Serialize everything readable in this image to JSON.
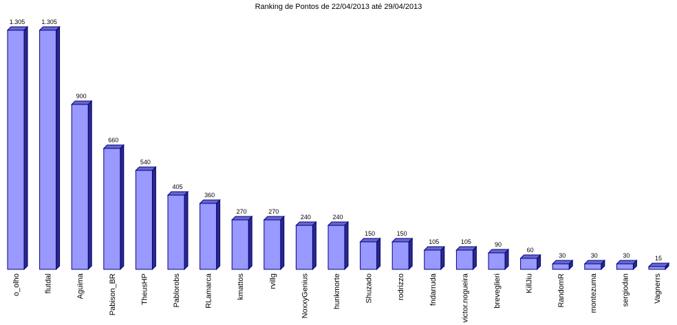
{
  "chart_data": {
    "type": "bar3d",
    "title": "Ranking de Pontos de 22/04/2013 até 29/04/2013",
    "categories": [
      "o_olho",
      "flutdal",
      "Aguima",
      "Pabison_BR",
      "TheusHP",
      "Pablorobs",
      "RLamarca",
      "kmattos",
      "rvillg",
      "NoxxyGenius",
      "hunkmorte",
      "Shuzado",
      "rodrizzo",
      "fndarruda",
      "victor.nogueira",
      "breveglieri",
      "KillJiu",
      "RandomR",
      "montezuma",
      "sergiodan",
      "Vagnerrs"
    ],
    "values": [
      1305,
      1305,
      900,
      660,
      540,
      405,
      360,
      270,
      270,
      240,
      240,
      150,
      150,
      105,
      105,
      90,
      60,
      30,
      30,
      30,
      15
    ],
    "value_labels": [
      "1.305",
      "1.305",
      "900",
      "660",
      "540",
      "405",
      "360",
      "270",
      "270",
      "240",
      "240",
      "150",
      "150",
      "105",
      "105",
      "90",
      "60",
      "30",
      "30",
      "30",
      "15"
    ],
    "color": "#9999ff"
  }
}
